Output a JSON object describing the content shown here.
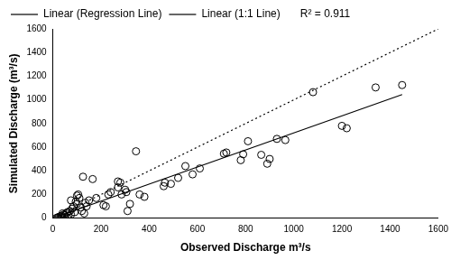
{
  "chart_data": {
    "type": "scatter",
    "x_label": "Observed Discharge m³/s",
    "y_label": "Simulated Discharge (m³/s)",
    "annotation": "R² = 0.911",
    "xlim": [
      0,
      1600
    ],
    "ylim": [
      0,
      1600
    ],
    "xticks": [
      0,
      200,
      400,
      600,
      800,
      1000,
      1200,
      1400,
      1600
    ],
    "yticks": [
      0,
      200,
      400,
      600,
      800,
      1000,
      1200,
      1400,
      1600
    ],
    "grid": false,
    "legend": "top",
    "series": [
      {
        "type": "scatter",
        "marker": "circle",
        "color": "#000000",
        "x": [
          15,
          20,
          25,
          30,
          35,
          40,
          40,
          45,
          50,
          55,
          60,
          60,
          65,
          70,
          75,
          75,
          80,
          85,
          90,
          95,
          100,
          100,
          105,
          110,
          115,
          120,
          125,
          130,
          135,
          140,
          150,
          165,
          180,
          210,
          220,
          230,
          240,
          270,
          270,
          280,
          285,
          300,
          305,
          310,
          320,
          345,
          360,
          380,
          460,
          465,
          490,
          520,
          550,
          580,
          610,
          710,
          720,
          780,
          790,
          810,
          865,
          890,
          900,
          930,
          965,
          1080,
          1200,
          1220,
          1340,
          1450
        ],
        "values": [
          2,
          5,
          10,
          15,
          20,
          8,
          40,
          30,
          25,
          40,
          50,
          5,
          20,
          60,
          30,
          150,
          80,
          100,
          50,
          140,
          190,
          120,
          200,
          170,
          90,
          60,
          350,
          40,
          130,
          100,
          150,
          330,
          170,
          110,
          100,
          200,
          220,
          260,
          310,
          300,
          200,
          240,
          220,
          60,
          120,
          565,
          200,
          180,
          270,
          300,
          290,
          340,
          440,
          370,
          420,
          545,
          555,
          490,
          540,
          650,
          535,
          460,
          500,
          670,
          660,
          1065,
          780,
          760,
          1105,
          1125
        ]
      },
      {
        "name": "Linear (Regression Line)",
        "type": "line",
        "line_style": "solid",
        "color": "#000000",
        "x": [
          15,
          1450
        ],
        "values": [
          10,
          1045
        ]
      },
      {
        "name": "Linear (1:1 Line)",
        "type": "line",
        "line_style": "dotted",
        "color": "#000000",
        "x": [
          0,
          1600
        ],
        "values": [
          0,
          1600
        ]
      }
    ]
  }
}
